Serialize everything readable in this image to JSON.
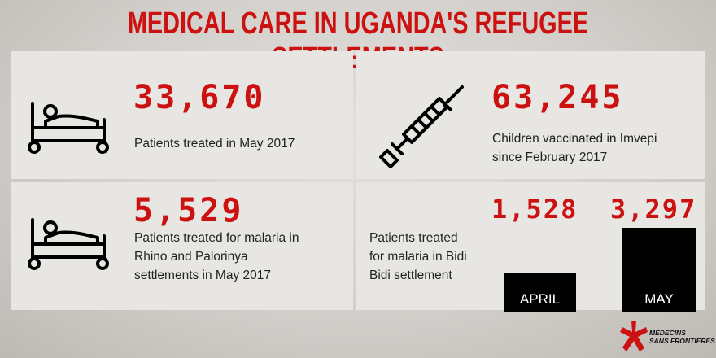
{
  "title": "MEDICAL CARE IN UGANDA'S REFUGEE SETTLEMENTS",
  "stat1": {
    "value": "33,670",
    "label": "Patients treated in May 2017"
  },
  "stat2": {
    "value": "63,245",
    "label_line1": "Children vaccinated in Imvepi",
    "label_line2": "since February 2017"
  },
  "stat3": {
    "value": "5,529",
    "label_line1": "Patients treated for malaria in",
    "label_line2": "Rhino and Palorinya",
    "label_line3": "settlements in May 2017"
  },
  "stat4": {
    "label_line1": "Patients treated",
    "label_line2": "for malaria in Bidi",
    "label_line3": "Bidi settlement",
    "bars": [
      {
        "month": "APRIL",
        "value_text": "1,528",
        "value": 1528
      },
      {
        "month": "MAY",
        "value_text": "3,297",
        "value": 3297
      }
    ]
  },
  "logo": {
    "line1": "MEDECINS",
    "line2": "SANS FRONTIERES"
  },
  "colors": {
    "accent": "#cc1111",
    "bar": "#000000",
    "panel": "#e8e6e3"
  },
  "icons": [
    "hospital-bed-icon",
    "syringe-icon",
    "hospital-bed-icon",
    "msf-logo-icon"
  ]
}
